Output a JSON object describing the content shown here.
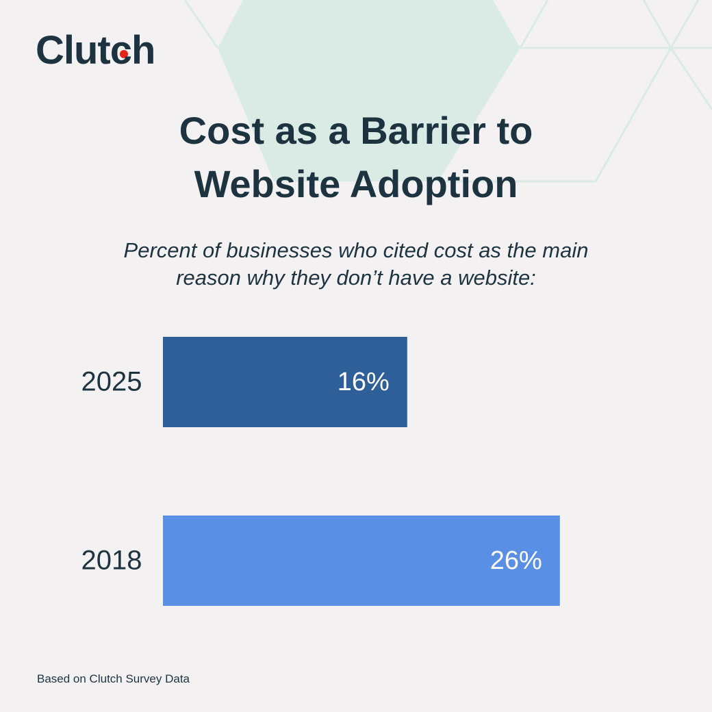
{
  "chart_data": {
    "type": "bar",
    "orientation": "horizontal",
    "logo": "Clutch",
    "title": "Cost as a Barrier to Website Adoption",
    "subtitle": "Percent of businesses who cited cost as the main reason why they don’t have a website:",
    "categories": [
      "2025",
      "2018"
    ],
    "values": [
      16,
      26
    ],
    "value_labels": [
      "16%",
      "26%"
    ],
    "colors": [
      "#2f5f98",
      "#5a8fe6"
    ],
    "source": "Based on Clutch Survey Data"
  }
}
